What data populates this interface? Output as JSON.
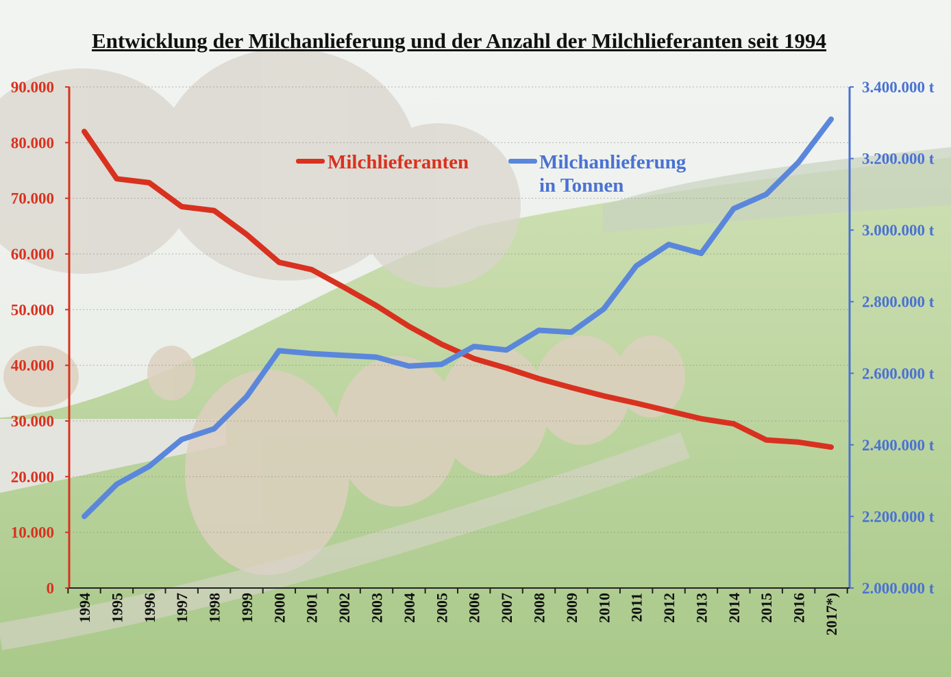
{
  "colors": {
    "left_axis": "#d9311f",
    "right_axis": "#4a72d2",
    "red_series": "#d9311f",
    "blue_series": "#5a87db"
  },
  "chart_data": {
    "type": "line",
    "title": "Entwicklung der Milchanlieferung und der Anzahl der Milchlieferanten seit 1994",
    "categories": [
      "1994",
      "1995",
      "1996",
      "1997",
      "1998",
      "1999",
      "2000",
      "2001",
      "2002",
      "2003",
      "2004",
      "2005",
      "2006",
      "2007",
      "2008",
      "2009",
      "2010",
      "2011",
      "2012",
      "2013",
      "2014",
      "2015",
      "2016",
      "2017*)"
    ],
    "y_left": {
      "min": 0,
      "max": 90000,
      "ticks": [
        "0",
        "10.000",
        "20.000",
        "30.000",
        "40.000",
        "50.000",
        "60.000",
        "70.000",
        "80.000",
        "90.000"
      ]
    },
    "y_right": {
      "min": 2000000,
      "max": 3400000,
      "ticks": [
        "2.000.000 t",
        "2.200.000 t",
        "2.400.000 t",
        "2.600.000 t",
        "2.800.000 t",
        "3.000.000 t",
        "3.200.000 t",
        "3.400.000 t"
      ]
    },
    "grid": true,
    "series": [
      {
        "name": "Milchlieferanten",
        "axis": "left",
        "values": [
          82000,
          73500,
          72800,
          68500,
          67800,
          63500,
          58500,
          57200,
          54000,
          50700,
          47000,
          43800,
          41200,
          39500,
          37600,
          36000,
          34500,
          33200,
          31800,
          30400,
          29500,
          26600,
          26200,
          25300
        ]
      },
      {
        "name": "Milchanlieferung\nin Tonnen",
        "axis": "right",
        "values": [
          2200000,
          2290000,
          2340000,
          2415000,
          2445000,
          2535000,
          2663000,
          2655000,
          2650000,
          2645000,
          2620000,
          2625000,
          2675000,
          2665000,
          2720000,
          2715000,
          2780000,
          2900000,
          2960000,
          2935000,
          3060000,
          3100000,
          3190000,
          3310000
        ]
      }
    ]
  }
}
